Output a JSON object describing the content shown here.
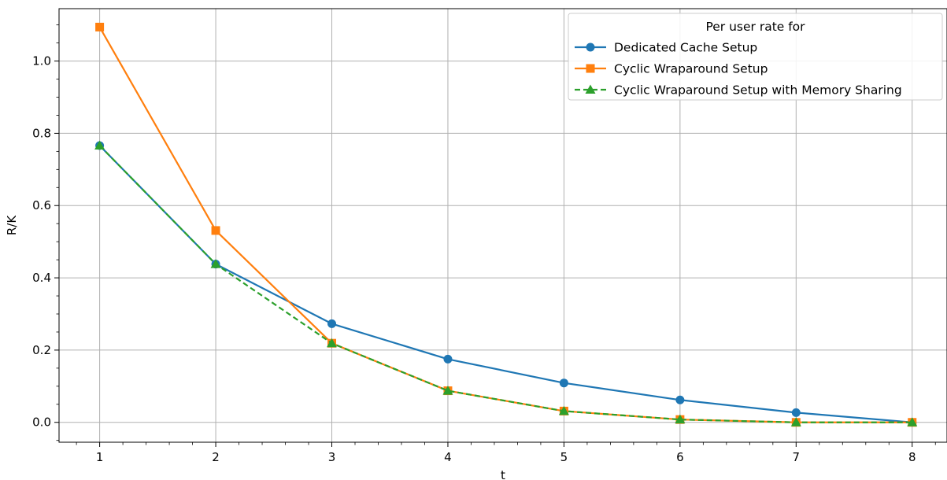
{
  "chart_data": {
    "type": "line",
    "xlabel": "t",
    "ylabel": "R/K",
    "x": [
      1,
      2,
      3,
      4,
      5,
      6,
      7,
      8
    ],
    "xlim": [
      0.65,
      8.3
    ],
    "ylim": [
      -0.055,
      1.145
    ],
    "xticks": [
      1,
      2,
      3,
      4,
      5,
      6,
      7,
      8
    ],
    "yticks": [
      0.0,
      0.2,
      0.4,
      0.6,
      0.8,
      1.0
    ],
    "ytick_labels": [
      "0.0",
      "0.2",
      "0.4",
      "0.6",
      "0.8",
      "1.0"
    ],
    "grid": true,
    "legend": {
      "title": "Per user rate for",
      "placement": "top-right"
    },
    "series": [
      {
        "name": "Dedicated Cache Setup",
        "values": [
          0.766,
          0.438,
          0.273,
          0.175,
          0.109,
          0.062,
          0.027,
          0.0
        ],
        "color": "#1f77b4",
        "marker": "circle",
        "linestyle": "solid"
      },
      {
        "name": "Cyclic Wraparound Setup",
        "values": [
          1.094,
          0.531,
          0.219,
          0.0875,
          0.03125,
          0.0078,
          0.0,
          0.0
        ],
        "color": "#ff7f0e",
        "marker": "square",
        "linestyle": "solid"
      },
      {
        "name": "Cyclic Wraparound Setup with Memory Sharing",
        "values": [
          0.766,
          0.438,
          0.219,
          0.0875,
          0.03125,
          0.0078,
          0.0,
          0.0
        ],
        "color": "#2ca02c",
        "marker": "triangle",
        "linestyle": "dashed"
      }
    ]
  }
}
